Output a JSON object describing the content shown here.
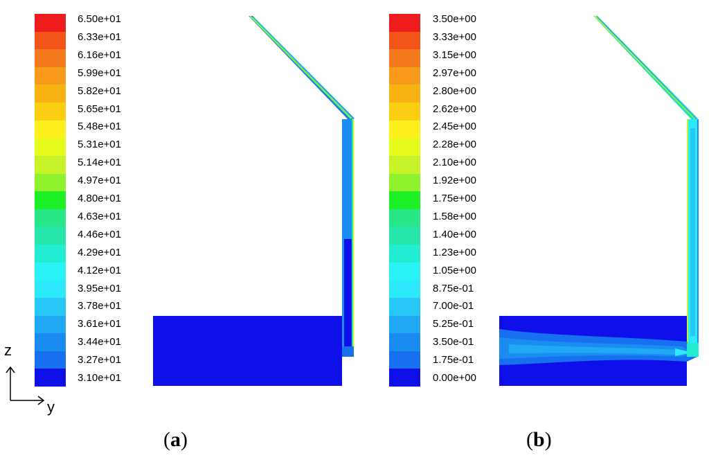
{
  "panels": [
    {
      "id": "a",
      "caption_open": "(",
      "caption_letter": "a",
      "caption_close": ")",
      "colorbar": {
        "labels": [
          "6.50e+01",
          "6.33e+01",
          "6.16e+01",
          "5.99e+01",
          "5.82e+01",
          "5.65e+01",
          "5.48e+01",
          "5.31e+01",
          "5.14e+01",
          "4.97e+01",
          "4.80e+01",
          "4.63e+01",
          "4.46e+01",
          "4.29e+01",
          "4.12e+01",
          "3.95e+01",
          "3.78e+01",
          "3.61e+01",
          "3.44e+01",
          "3.27e+01",
          "3.10e+01"
        ]
      }
    },
    {
      "id": "b",
      "caption_open": "(",
      "caption_letter": "b",
      "caption_close": ")",
      "colorbar": {
        "labels": [
          "3.50e+00",
          "3.33e+00",
          "3.15e+00",
          "2.97e+00",
          "2.80e+00",
          "2.62e+00",
          "2.45e+00",
          "2.28e+00",
          "2.10e+00",
          "1.92e+00",
          "1.75e+00",
          "1.58e+00",
          "1.40e+00",
          "1.23e+00",
          "1.05e+00",
          "8.75e-01",
          "7.00e-01",
          "5.25e-01",
          "3.50e-01",
          "1.75e-01",
          "0.00e+00"
        ]
      }
    }
  ],
  "colormap": [
    "#ee1c1c",
    "#f35518",
    "#f57a1d",
    "#f89b1b",
    "#f8b313",
    "#fbcd13",
    "#fdf01d",
    "#e7fb1f",
    "#c6f32a",
    "#8ff22c",
    "#1ef027",
    "#27e787",
    "#27e6ac",
    "#22ecd2",
    "#2af3f5",
    "#2de9fc",
    "#27c7f8",
    "#20a9f4",
    "#1b8cf2",
    "#1770ef",
    "#0f0fea"
  ],
  "axes": {
    "z_label": "z",
    "y_label": "y"
  }
}
